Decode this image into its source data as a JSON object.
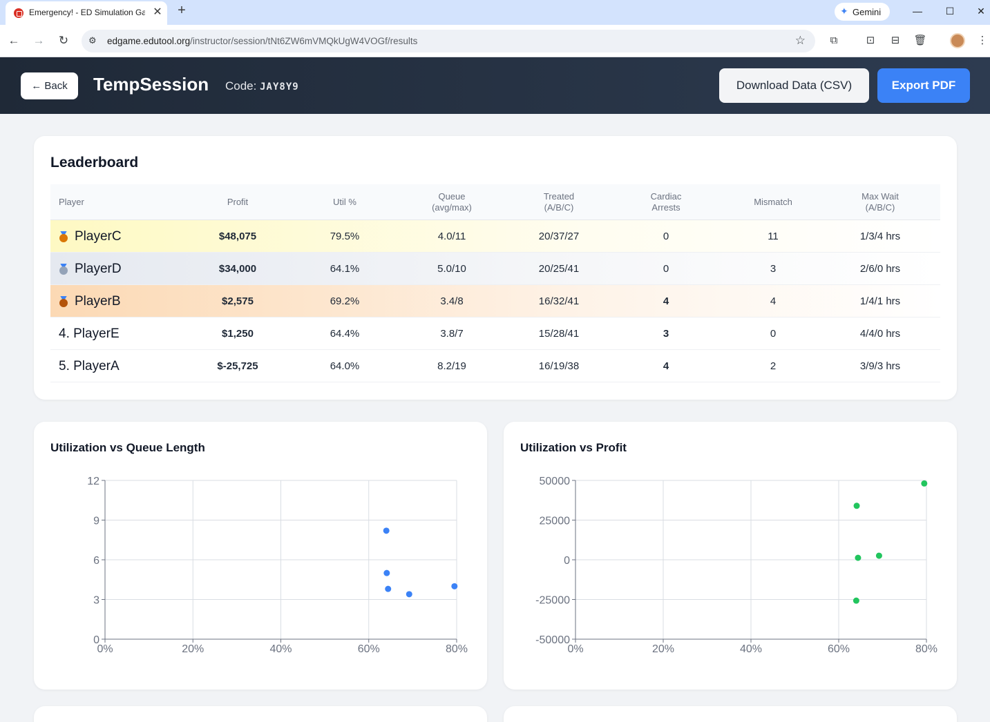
{
  "browser": {
    "tab_title": "Emergency! - ED Simulation Ga",
    "tab_close": "✕",
    "new_tab": "+",
    "gemini_label": "Gemini",
    "url_host": "edgame.edutool.org",
    "url_path": "/instructor/session/tNt6ZW6mVMQkUgW4VOGf/results"
  },
  "header": {
    "back_label": "← Back",
    "title": "TempSession",
    "code_label": "Code:",
    "code_value": "JAY8Y9",
    "csv_label": "Download Data (CSV)",
    "pdf_label": "Export PDF"
  },
  "leaderboard": {
    "title": "Leaderboard",
    "columns": [
      "Player",
      "Profit",
      "Util %",
      "Queue\n(avg/max)",
      "Treated\n(A/B/C)",
      "Cardiac\nArrests",
      "Mismatch",
      "Max Wait\n(A/B/C)"
    ],
    "rows": [
      {
        "rank_label": "",
        "player": "PlayerC",
        "profit": "$48,075",
        "util": "79.5%",
        "queue": "4.0/11",
        "treated": "20/37/27",
        "arrests": "0",
        "mismatch": "11",
        "max_wait": "1/3/4 hrs"
      },
      {
        "rank_label": "",
        "player": "PlayerD",
        "profit": "$34,000",
        "util": "64.1%",
        "queue": "5.0/10",
        "treated": "20/25/41",
        "arrests": "0",
        "mismatch": "3",
        "max_wait": "2/6/0 hrs"
      },
      {
        "rank_label": "",
        "player": "PlayerB",
        "profit": "$2,575",
        "util": "69.2%",
        "queue": "3.4/8",
        "treated": "16/32/41",
        "arrests": "4",
        "mismatch": "4",
        "max_wait": "1/4/1 hrs"
      },
      {
        "rank_label": "4. ",
        "player": "PlayerE",
        "profit": "$1,250",
        "util": "64.4%",
        "queue": "3.8/7",
        "treated": "15/28/41",
        "arrests": "3",
        "mismatch": "0",
        "max_wait": "4/4/0 hrs"
      },
      {
        "rank_label": "5. ",
        "player": "PlayerA",
        "profit": "$-25,725",
        "util": "64.0%",
        "queue": "8.2/19",
        "treated": "16/19/38",
        "arrests": "4",
        "mismatch": "2",
        "max_wait": "3/9/3 hrs"
      }
    ],
    "medal_colors": [
      "#d97706",
      "#94a3b8",
      "#b45309"
    ]
  },
  "colors": {
    "queue_points": "#3b82f6",
    "profit_points": "#22c55e",
    "positive": "#16a34a",
    "negative": "#dc2626"
  },
  "chart_data": [
    {
      "type": "scatter",
      "title": "Utilization vs Queue Length",
      "xlabel": "",
      "ylabel": "",
      "xlim": [
        0,
        80
      ],
      "ylim": [
        0,
        12
      ],
      "x_ticks": [
        "0%",
        "20%",
        "40%",
        "60%",
        "80%"
      ],
      "y_ticks": [
        "0",
        "3",
        "6",
        "9",
        "12"
      ],
      "grid": true,
      "legend": "none",
      "points": [
        {
          "x": 79.5,
          "y": 4.0
        },
        {
          "x": 64.1,
          "y": 5.0
        },
        {
          "x": 69.2,
          "y": 3.4
        },
        {
          "x": 64.4,
          "y": 3.8
        },
        {
          "x": 64.0,
          "y": 8.2
        }
      ]
    },
    {
      "type": "scatter",
      "title": "Utilization vs Profit",
      "xlabel": "",
      "ylabel": "",
      "xlim": [
        0,
        80
      ],
      "ylim": [
        -50000,
        50000
      ],
      "x_ticks": [
        "0%",
        "20%",
        "40%",
        "60%",
        "80%"
      ],
      "y_ticks": [
        "-50000",
        "-25000",
        "0",
        "25000",
        "50000"
      ],
      "grid": true,
      "legend": "none",
      "points": [
        {
          "x": 79.5,
          "y": 48075
        },
        {
          "x": 64.1,
          "y": 34000
        },
        {
          "x": 69.2,
          "y": 2575
        },
        {
          "x": 64.4,
          "y": 1250
        },
        {
          "x": 64.0,
          "y": -25725
        }
      ]
    }
  ]
}
